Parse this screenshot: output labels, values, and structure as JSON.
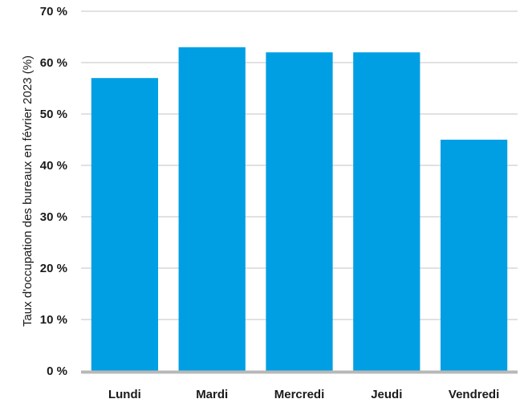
{
  "chart_data": {
    "type": "bar",
    "categories": [
      "Lundi",
      "Mardi",
      "Mercredi",
      "Jeudi",
      "Vendredi"
    ],
    "values": [
      57,
      63,
      62,
      62,
      45
    ],
    "ylabel": "Taux d'occupation des bureaux en février 2023 (%)",
    "xlabel": "",
    "ylim": [
      0,
      70
    ],
    "yticks": [
      0,
      10,
      20,
      30,
      40,
      50,
      60,
      70
    ],
    "ytick_labels": [
      "0 %",
      "10 %",
      "20 %",
      "30 %",
      "40 %",
      "50 %",
      "60 %",
      "70 %"
    ],
    "grid": true,
    "colors": {
      "bar": "#009fe3",
      "grid": "#cfcfcf",
      "baseline": "#b8b8b8"
    }
  }
}
